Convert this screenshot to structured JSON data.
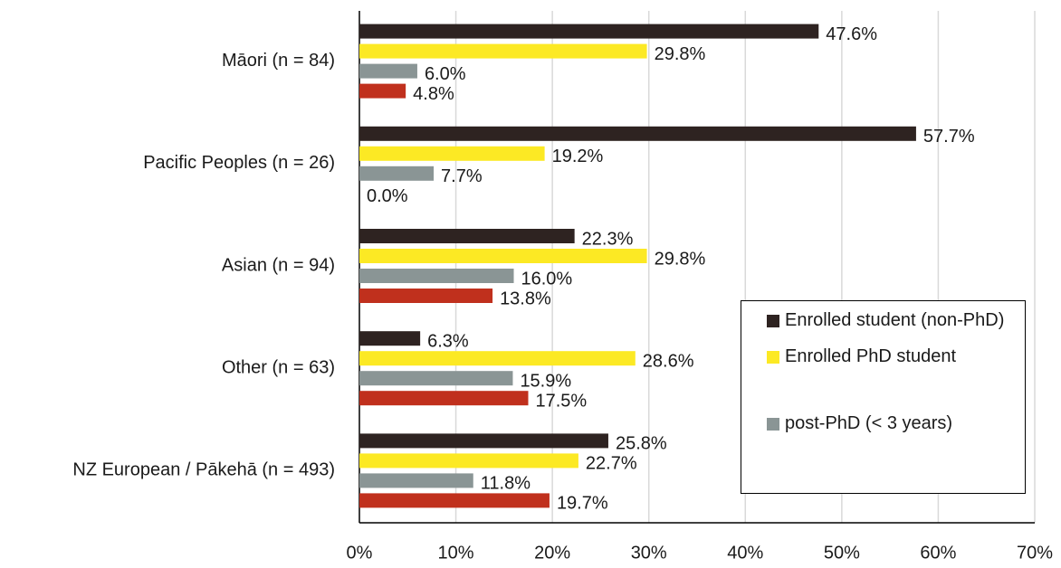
{
  "chart_data": {
    "type": "hbar",
    "categories": [
      "Māori (n = 84)",
      "Pacific Peoples (n = 26)",
      "Asian (n = 94)",
      "Other (n = 63)",
      "NZ European / Pākehā (n = 493)"
    ],
    "series": [
      {
        "name": "Enrolled student (non-PhD)",
        "color": "#2e2321",
        "values": [
          47.6,
          57.7,
          22.3,
          6.3,
          25.8
        ],
        "value_labels": [
          "47.6%",
          "57.7%",
          "22.3%",
          "6.3%",
          "25.8%"
        ]
      },
      {
        "name": "Enrolled PhD student",
        "color": "#fce924",
        "values": [
          29.8,
          19.2,
          29.8,
          28.6,
          22.7
        ],
        "value_labels": [
          "29.8%",
          "19.2%",
          "29.8%",
          "28.6%",
          "22.7%"
        ]
      },
      {
        "name": "post-PhD (< 3 years)",
        "color": "#8a9595",
        "values": [
          6.0,
          7.7,
          16.0,
          15.9,
          11.8
        ],
        "value_labels": [
          "6.0%",
          "7.7%",
          "16.0%",
          "15.9%",
          "11.8%"
        ]
      },
      {
        "color": "#c0301d",
        "values": [
          4.8,
          0.0,
          13.8,
          17.5,
          19.7
        ],
        "value_labels": [
          "4.8%",
          "0.0%",
          "13.8%",
          "17.5%",
          "19.7%"
        ]
      }
    ],
    "xlim": [
      0,
      70
    ],
    "xticks": [
      {
        "value": 0,
        "label": "0%"
      },
      {
        "value": 10,
        "label": "10%"
      },
      {
        "value": 20,
        "label": "20%"
      },
      {
        "value": 30,
        "label": "30%"
      },
      {
        "value": 40,
        "label": "40%"
      },
      {
        "value": 50,
        "label": "50%"
      },
      {
        "value": 60,
        "label": "60%"
      },
      {
        "value": 70,
        "label": "70%"
      }
    ],
    "grid": true,
    "legend": "lower right"
  }
}
